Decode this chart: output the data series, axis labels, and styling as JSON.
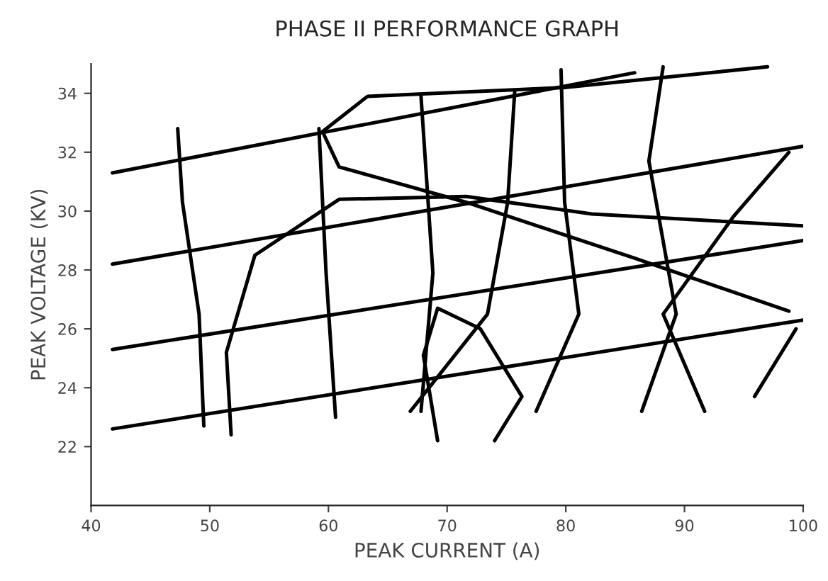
{
  "chart_data": {
    "type": "line",
    "title": "PHASE II PERFORMANCE GRAPH",
    "xlabel": "PEAK CURRENT (A)",
    "ylabel": "PEAK VOLTAGE (KV)",
    "xlim": [
      40,
      100
    ],
    "ylim": [
      20,
      35
    ],
    "xticks": [
      40,
      50,
      60,
      70,
      80,
      90,
      100
    ],
    "yticks": [
      22,
      24,
      26,
      28,
      30,
      32,
      34
    ],
    "grid": false,
    "marker": "none",
    "line_style": "solid",
    "series": [
      {
        "color": "#000000",
        "x": [
          41.8,
          85.8
        ],
        "values": [
          31.3,
          34.7
        ]
      },
      {
        "color": "#000000",
        "x": [
          41.8,
          100
        ],
        "values": [
          28.2,
          32.2
        ]
      },
      {
        "color": "#000000",
        "x": [
          41.8,
          100
        ],
        "values": [
          25.3,
          29.0
        ]
      },
      {
        "color": "#000000",
        "x": [
          41.8,
          100
        ],
        "values": [
          22.6,
          26.3
        ]
      },
      {
        "color": "#000000",
        "x": [
          47.3,
          47.7,
          49.1,
          49.5
        ],
        "values": [
          32.8,
          30.3,
          26.5,
          22.7
        ]
      },
      {
        "color": "#000000",
        "x": [
          51.8,
          51.4,
          53.8,
          60.9,
          71.6,
          82.2,
          100
        ],
        "values": [
          22.4,
          25.2,
          28.5,
          30.4,
          30.5,
          29.9,
          29.5
        ]
      },
      {
        "color": "#000000",
        "x": [
          59.2,
          59.8,
          60.6
        ],
        "values": [
          32.8,
          27.9,
          23.0
        ]
      },
      {
        "color": "#000000",
        "x": [
          97.0,
          79.9,
          63.3,
          59.5,
          60.9,
          71.6,
          85.8,
          98.8
        ],
        "values": [
          34.9,
          34.2,
          33.9,
          32.7,
          31.5,
          30.3,
          28.4,
          26.6
        ]
      },
      {
        "color": "#000000",
        "x": [
          67.8,
          68.8,
          67.8
        ],
        "values": [
          33.9,
          27.9,
          23.2
        ]
      },
      {
        "color": "#000000",
        "x": [
          75.7,
          75.1,
          73.4,
          66.9
        ],
        "values": [
          34.1,
          30.3,
          26.5,
          23.2
        ]
      },
      {
        "color": "#000000",
        "x": [
          79.6,
          79.9,
          81.1,
          77.5
        ],
        "values": [
          34.8,
          30.3,
          26.5,
          23.2
        ]
      },
      {
        "color": "#000000",
        "x": [
          88.2,
          87.0,
          89.3,
          86.4
        ],
        "values": [
          34.9,
          31.7,
          26.5,
          23.2
        ]
      },
      {
        "color": "#000000",
        "x": [
          98.8,
          94.1,
          88.2,
          91.7
        ],
        "values": [
          32.0,
          29.8,
          26.5,
          23.2
        ]
      },
      {
        "color": "#000000",
        "x": [
          99.4,
          95.9
        ],
        "values": [
          26.0,
          23.7
        ]
      },
      {
        "color": "#000000",
        "x": [
          69.2,
          68.0,
          69.2,
          72.8,
          76.3,
          74.0
        ],
        "values": [
          22.2,
          25.1,
          26.7,
          26.0,
          23.7,
          22.2
        ]
      }
    ]
  }
}
